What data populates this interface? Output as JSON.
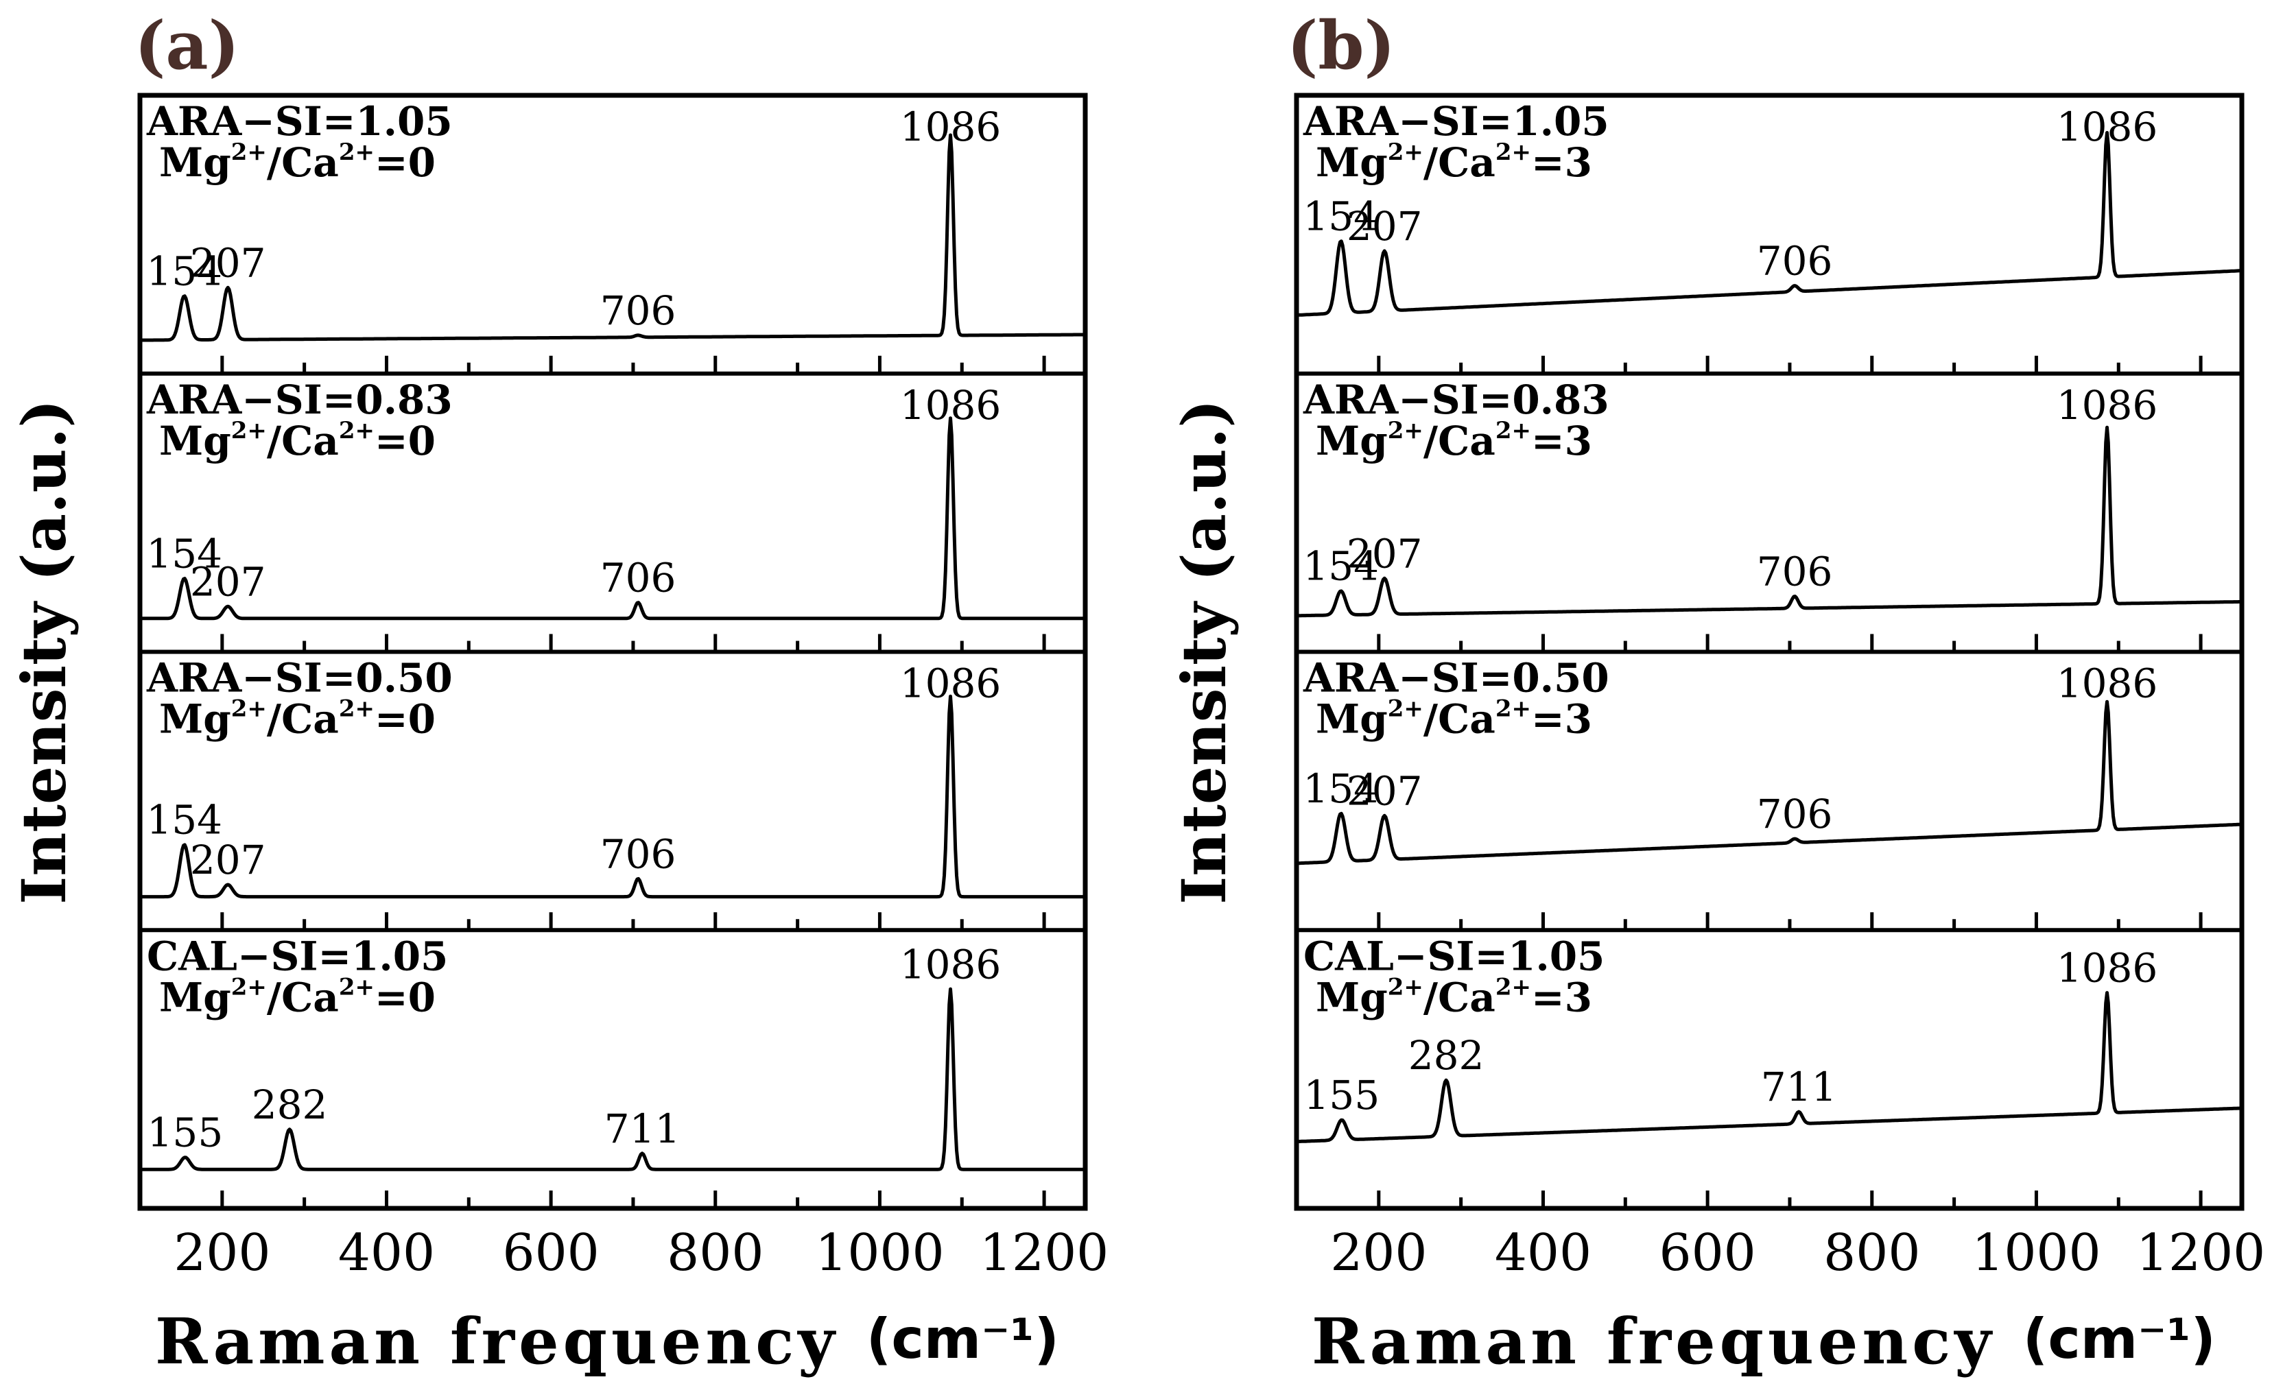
{
  "chart_data": [
    {
      "type": "line",
      "panel": "(a)",
      "xlabel": "Raman frequency",
      "xunit": "(cm⁻¹)",
      "ylabel": "Intensity (a.u.)",
      "xlim": [
        100,
        1250
      ],
      "xticks": [
        200,
        400,
        600,
        800,
        1000,
        1200
      ],
      "stacked": [
        {
          "label_line1": "ARA−SI=1.05",
          "ion_ratio_value": "0",
          "baseline": 0.12,
          "slope": 0.02,
          "peaks": [
            {
              "x": 154,
              "h": 0.22,
              "label": "154"
            },
            {
              "x": 207,
              "h": 0.26,
              "label": "207"
            },
            {
              "x": 706,
              "h": 0.01,
              "label": "706"
            },
            {
              "x": 1086,
              "h": 1.0,
              "label": "1086"
            }
          ]
        },
        {
          "label_line1": "ARA−SI=0.83",
          "ion_ratio_value": "0",
          "baseline": 0.12,
          "slope": 0.0,
          "peaks": [
            {
              "x": 154,
              "h": 0.2,
              "label": "154"
            },
            {
              "x": 207,
              "h": 0.06,
              "label": "207"
            },
            {
              "x": 706,
              "h": 0.08,
              "label": "706"
            },
            {
              "x": 1086,
              "h": 1.0,
              "label": "1086"
            }
          ]
        },
        {
          "label_line1": "ARA−SI=0.50",
          "ion_ratio_value": "0",
          "baseline": 0.12,
          "slope": 0.0,
          "peaks": [
            {
              "x": 154,
              "h": 0.26,
              "label": "154"
            },
            {
              "x": 207,
              "h": 0.06,
              "label": "207"
            },
            {
              "x": 706,
              "h": 0.09,
              "label": "706"
            },
            {
              "x": 1086,
              "h": 1.0,
              "label": "1086"
            }
          ]
        },
        {
          "label_line1": "CAL−SI=1.05",
          "ion_ratio_value": "0",
          "baseline": 0.14,
          "slope": 0.0,
          "peaks": [
            {
              "x": 155,
              "h": 0.06,
              "label": "155"
            },
            {
              "x": 282,
              "h": 0.2,
              "label": "282"
            },
            {
              "x": 711,
              "h": 0.08,
              "label": "711"
            },
            {
              "x": 1086,
              "h": 0.9,
              "label": "1086"
            }
          ]
        }
      ]
    },
    {
      "type": "line",
      "panel": "(b)",
      "xlabel": "Raman frequency",
      "xunit": "(cm⁻¹)",
      "ylabel": "Intensity (a.u.)",
      "xlim": [
        100,
        1250
      ],
      "xticks": [
        200,
        400,
        600,
        800,
        1000,
        1200
      ],
      "stacked": [
        {
          "label_line1": "ARA−SI=1.05",
          "ion_ratio_value": "3",
          "baseline": 0.21,
          "slope": 0.16,
          "peaks": [
            {
              "x": 154,
              "h": 0.36,
              "label": "154"
            },
            {
              "x": 207,
              "h": 0.3,
              "label": "207"
            },
            {
              "x": 706,
              "h": 0.03,
              "label": "706"
            },
            {
              "x": 1086,
              "h": 0.72,
              "label": "1086"
            }
          ]
        },
        {
          "label_line1": "ARA−SI=0.83",
          "ion_ratio_value": "3",
          "baseline": 0.13,
          "slope": 0.05,
          "peaks": [
            {
              "x": 154,
              "h": 0.12,
              "label": "154"
            },
            {
              "x": 207,
              "h": 0.18,
              "label": "207"
            },
            {
              "x": 706,
              "h": 0.06,
              "label": "706"
            },
            {
              "x": 1086,
              "h": 0.88,
              "label": "1086"
            }
          ]
        },
        {
          "label_line1": "ARA−SI=0.50",
          "ion_ratio_value": "3",
          "baseline": 0.24,
          "slope": 0.14,
          "peaks": [
            {
              "x": 154,
              "h": 0.24,
              "label": "154"
            },
            {
              "x": 207,
              "h": 0.22,
              "label": "207"
            },
            {
              "x": 706,
              "h": 0.02,
              "label": "706"
            },
            {
              "x": 1086,
              "h": 0.64,
              "label": "1086"
            }
          ]
        },
        {
          "label_line1": "CAL−SI=1.05",
          "ion_ratio_value": "3",
          "baseline": 0.24,
          "slope": 0.12,
          "peaks": [
            {
              "x": 155,
              "h": 0.1,
              "label": "155"
            },
            {
              "x": 282,
              "h": 0.28,
              "label": "282"
            },
            {
              "x": 711,
              "h": 0.06,
              "label": "711"
            },
            {
              "x": 1086,
              "h": 0.6,
              "label": "1086"
            }
          ]
        }
      ]
    }
  ]
}
